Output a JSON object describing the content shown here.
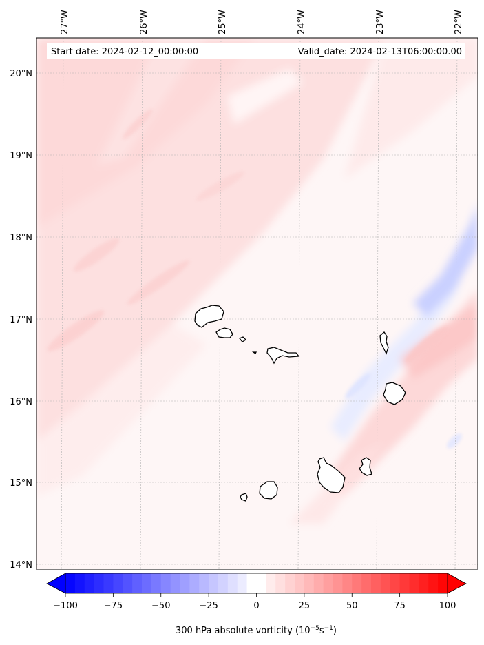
{
  "header": {
    "start_date": "Start date: 2024-02-12_00:00:00",
    "valid_date": "Valid_date: 2024-02-13T06:00:00.00"
  },
  "map": {
    "longitude_labels": [
      "27°W",
      "26°W",
      "25°W",
      "24°W",
      "23°W",
      "22°W"
    ],
    "latitude_labels": [
      "20°N",
      "19°N",
      "18°N",
      "17°N",
      "16°N",
      "15°N",
      "14°N"
    ],
    "gridlines": true,
    "region": "Cabo Verde islands",
    "coastline_color": "#000000"
  },
  "colorbar": {
    "label_prefix": "300 hPa absolute vorticity (10",
    "label_exp1": "−5",
    "label_mid": "s",
    "label_exp2": "−1",
    "label_suffix": ")",
    "tick_labels": [
      "−100",
      "−75",
      "−50",
      "−25",
      "0",
      "25",
      "50",
      "75",
      "100"
    ],
    "min": -100,
    "max": 100,
    "extend": "both",
    "colors": {
      "negative": "#0000ff",
      "neutral": "#ffffff",
      "positive": "#ff0000"
    }
  }
}
